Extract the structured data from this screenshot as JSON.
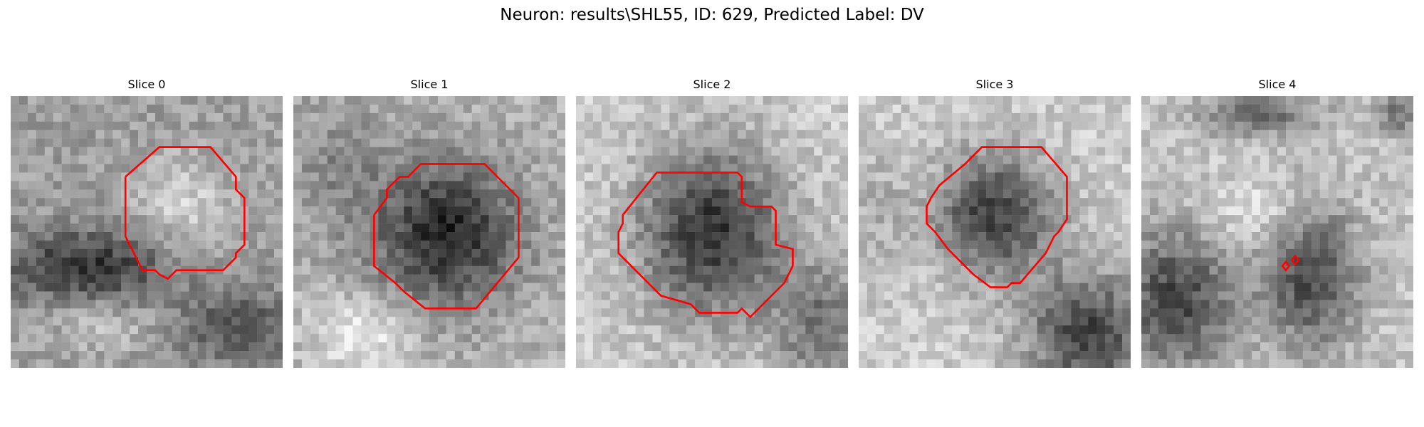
{
  "figure": {
    "title": "Neuron: results\\SHL55, ID: 629, Predicted Label: DV",
    "contour_color": "#ff0000"
  },
  "panels": [
    {
      "title": "Slice 0"
    },
    {
      "title": "Slice 1"
    },
    {
      "title": "Slice 2"
    },
    {
      "title": "Slice 3"
    },
    {
      "title": "Slice 4"
    }
  ]
}
